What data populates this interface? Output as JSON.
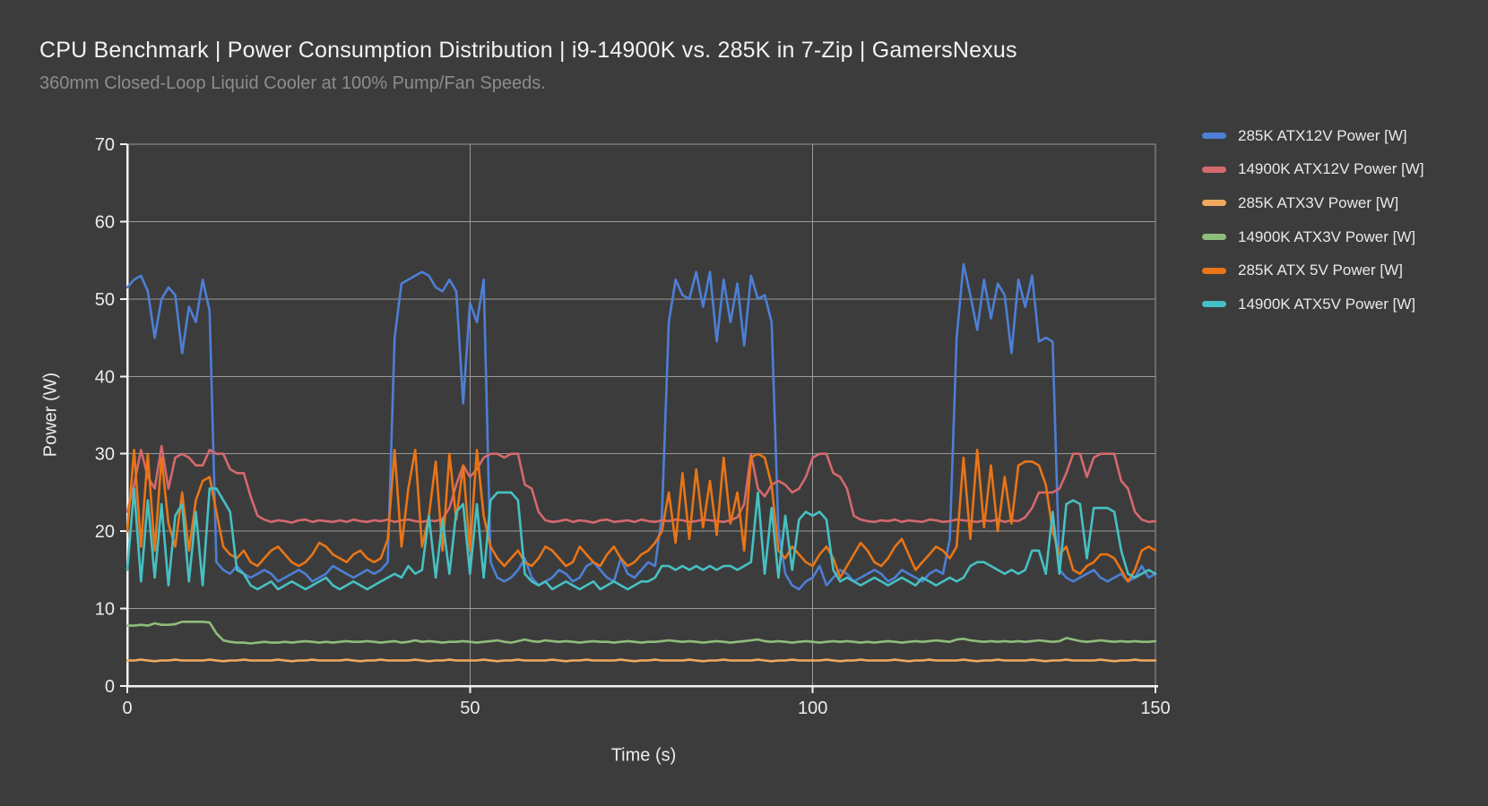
{
  "header": {
    "title": "CPU Benchmark | Power Consumption Distribution | i9-14900K vs. 285K in 7-Zip | GamersNexus",
    "subtitle": "360mm Closed-Loop Liquid Cooler at 100% Pump/Fan Speeds."
  },
  "colors": {
    "background": "#3c3c3c",
    "gridline": "#9a9a9a",
    "axis": "#f2f2f2",
    "title_text": "#f3f3f3",
    "subtitle_text": "#8d8d8d",
    "tick_text": "#ececec",
    "legend_text": "#e9e9e9"
  },
  "chart_data": {
    "type": "line",
    "title": "CPU Benchmark | Power Consumption Distribution | i9-14900K vs. 285K in 7-Zip | GamersNexus",
    "subtitle": "360mm Closed-Loop Liquid Cooler at 100% Pump/Fan Speeds.",
    "xlabel": "Time (s)",
    "ylabel": "Power (W)",
    "xlim": [
      0,
      150
    ],
    "ylim": [
      0,
      70
    ],
    "xticks": [
      0,
      50,
      100,
      150
    ],
    "yticks": [
      0,
      10,
      20,
      30,
      40,
      50,
      60,
      70
    ],
    "x_step": 1,
    "grid": "on",
    "legend_position": "right",
    "series": [
      {
        "name": "285K ATX12V Power [W]",
        "color": "#4d7fd6",
        "values": [
          51.5,
          52.5,
          53,
          51,
          45,
          50,
          51.5,
          50.5,
          43,
          49,
          47,
          52.5,
          48.5,
          16,
          15,
          14.5,
          15.5,
          14.5,
          14,
          14.5,
          15,
          14.5,
          13.5,
          14,
          14.5,
          15,
          14.5,
          13.5,
          14,
          14.5,
          15.5,
          15,
          14.5,
          14,
          14.5,
          15,
          14.5,
          15,
          16,
          45,
          52,
          52.5,
          53,
          53.5,
          53,
          51.5,
          51,
          52.5,
          51,
          36.5,
          49.5,
          47,
          52.5,
          16,
          14,
          13.5,
          14,
          15,
          16.5,
          14,
          13,
          13.5,
          14,
          15,
          14.5,
          13.5,
          14,
          15.5,
          16,
          15,
          14,
          13.5,
          16.5,
          14.5,
          14,
          15,
          16,
          15.5,
          22,
          47,
          52.5,
          50.5,
          50,
          53.5,
          49,
          53.5,
          44.5,
          52.5,
          47,
          52,
          44,
          53,
          50,
          50.5,
          47,
          20,
          14.5,
          13,
          12.5,
          13.5,
          14,
          15.5,
          13,
          14,
          15,
          14.5,
          13.5,
          14,
          14.5,
          15,
          14.5,
          13.5,
          14,
          15,
          14.5,
          14,
          13.5,
          14.5,
          15,
          14.5,
          19,
          45,
          54.5,
          50.5,
          46,
          52.5,
          47.5,
          52,
          50.5,
          43,
          52.5,
          49,
          53,
          44.5,
          45,
          44.5,
          15,
          14,
          13.5,
          14,
          14.5,
          15,
          14,
          13.5,
          14,
          14.5,
          13.5,
          14,
          15.5,
          14,
          14.5
        ]
      },
      {
        "name": "14900K ATX12V Power [W]",
        "color": "#d5696d",
        "values": [
          22.5,
          26,
          30.5,
          27,
          25.5,
          31,
          25.5,
          29.5,
          30,
          29.5,
          28.5,
          28.5,
          30.5,
          30,
          30,
          28,
          27.5,
          27.5,
          24.5,
          22,
          21.5,
          21.2,
          21.4,
          21.3,
          21.1,
          21.4,
          21.5,
          21.2,
          21.4,
          21.3,
          21.2,
          21.4,
          21.2,
          21.5,
          21.3,
          21.2,
          21.4,
          21.3,
          21.5,
          21.2,
          21.4,
          21.5,
          21.3,
          21.2,
          21.4,
          21.3,
          21.6,
          23,
          26,
          28.5,
          27,
          28,
          29.5,
          30,
          30,
          29.5,
          30,
          30,
          26,
          25.5,
          22.5,
          21.4,
          21.2,
          21.3,
          21.5,
          21.2,
          21.4,
          21.3,
          21.1,
          21.4,
          21.5,
          21.2,
          21.3,
          21.4,
          21.2,
          21.5,
          21.3,
          21.2,
          21.4,
          21.3,
          21.5,
          21.4,
          21.2,
          21.3,
          21.5,
          21.4,
          21.3,
          21.2,
          21.4,
          21.8,
          23.5,
          30,
          25.5,
          24.5,
          26,
          26.5,
          26,
          25,
          25.5,
          27,
          29.5,
          30,
          30,
          27.5,
          27,
          25.5,
          22,
          21.5,
          21.3,
          21.2,
          21.4,
          21.3,
          21.5,
          21.2,
          21.4,
          21.3,
          21.2,
          21.5,
          21.4,
          21.2,
          21.3,
          21.5,
          21.4,
          21.3,
          21.2,
          21.4,
          21.3,
          21.5,
          21.2,
          21.4,
          21.3,
          21.8,
          23,
          25,
          25,
          25,
          25.5,
          27.5,
          30,
          30,
          27,
          29.5,
          30,
          30,
          30,
          26.5,
          25.5,
          22.5,
          21.5,
          21.2,
          21.3
        ]
      },
      {
        "name": "285K ATX3V Power [W]",
        "color": "#f0a95e",
        "values": [
          3.3,
          3.3,
          3.4,
          3.3,
          3.2,
          3.3,
          3.3,
          3.4,
          3.3,
          3.3,
          3.3,
          3.3,
          3.4,
          3.3,
          3.2,
          3.3,
          3.3,
          3.4,
          3.3,
          3.3,
          3.3,
          3.3,
          3.4,
          3.3,
          3.2,
          3.3,
          3.3,
          3.4,
          3.3,
          3.3,
          3.3,
          3.3,
          3.4,
          3.3,
          3.2,
          3.3,
          3.3,
          3.4,
          3.3,
          3.3,
          3.3,
          3.3,
          3.4,
          3.3,
          3.2,
          3.3,
          3.3,
          3.4,
          3.3,
          3.3,
          3.3,
          3.3,
          3.4,
          3.3,
          3.2,
          3.3,
          3.3,
          3.4,
          3.3,
          3.3,
          3.3,
          3.3,
          3.4,
          3.3,
          3.2,
          3.3,
          3.3,
          3.4,
          3.3,
          3.3,
          3.3,
          3.3,
          3.4,
          3.3,
          3.2,
          3.3,
          3.3,
          3.4,
          3.3,
          3.3,
          3.3,
          3.3,
          3.4,
          3.3,
          3.2,
          3.3,
          3.3,
          3.4,
          3.3,
          3.3,
          3.3,
          3.3,
          3.4,
          3.3,
          3.2,
          3.3,
          3.3,
          3.4,
          3.3,
          3.3,
          3.3,
          3.3,
          3.4,
          3.3,
          3.2,
          3.3,
          3.3,
          3.4,
          3.3,
          3.3,
          3.3,
          3.3,
          3.4,
          3.3,
          3.2,
          3.3,
          3.3,
          3.4,
          3.3,
          3.3,
          3.3,
          3.3,
          3.4,
          3.3,
          3.2,
          3.3,
          3.3,
          3.4,
          3.3,
          3.3,
          3.3,
          3.3,
          3.4,
          3.3,
          3.2,
          3.3,
          3.3,
          3.4,
          3.3,
          3.3,
          3.3,
          3.3,
          3.4,
          3.3,
          3.2,
          3.3,
          3.3,
          3.4,
          3.3,
          3.3,
          3.3
        ]
      },
      {
        "name": "14900K ATX3V Power [W]",
        "color": "#8fbd7a",
        "values": [
          7.8,
          7.8,
          7.9,
          7.8,
          8.1,
          7.9,
          7.9,
          8,
          8.3,
          8.3,
          8.3,
          8.3,
          8.2,
          6.8,
          5.9,
          5.7,
          5.6,
          5.6,
          5.5,
          5.6,
          5.7,
          5.6,
          5.6,
          5.7,
          5.6,
          5.7,
          5.8,
          5.7,
          5.6,
          5.7,
          5.6,
          5.7,
          5.8,
          5.7,
          5.7,
          5.8,
          5.7,
          5.6,
          5.7,
          5.8,
          5.6,
          5.7,
          5.9,
          5.7,
          5.8,
          5.7,
          5.6,
          5.7,
          5.7,
          5.8,
          5.7,
          5.6,
          5.7,
          5.8,
          5.9,
          5.7,
          5.6,
          5.8,
          6,
          5.8,
          5.7,
          5.9,
          5.8,
          5.7,
          5.8,
          5.7,
          5.6,
          5.7,
          5.8,
          5.7,
          5.7,
          5.6,
          5.7,
          5.8,
          5.7,
          5.6,
          5.7,
          5.7,
          5.8,
          5.9,
          5.8,
          5.7,
          5.8,
          5.7,
          5.6,
          5.7,
          5.8,
          5.7,
          5.6,
          5.7,
          5.8,
          5.9,
          6,
          5.8,
          5.7,
          5.8,
          5.7,
          5.6,
          5.7,
          5.8,
          5.7,
          5.6,
          5.7,
          5.8,
          5.7,
          5.8,
          5.7,
          5.6,
          5.7,
          5.6,
          5.7,
          5.8,
          5.7,
          5.6,
          5.7,
          5.8,
          5.7,
          5.8,
          5.9,
          5.8,
          5.7,
          6,
          6.1,
          5.9,
          5.8,
          5.7,
          5.8,
          5.7,
          5.8,
          5.7,
          5.8,
          5.7,
          5.8,
          5.9,
          5.8,
          5.7,
          5.8,
          6.2,
          6,
          5.8,
          5.7,
          5.8,
          5.9,
          5.8,
          5.7,
          5.8,
          5.7,
          5.8,
          5.7,
          5.7,
          5.8
        ]
      },
      {
        "name": "285K ATX 5V Power [W]",
        "color": "#e97517",
        "values": [
          20,
          30.5,
          18,
          30,
          17.5,
          29.5,
          21,
          18,
          25,
          17.5,
          24,
          26.5,
          27,
          22.5,
          18,
          17,
          16.5,
          17.5,
          16,
          15.5,
          16.5,
          17.5,
          18,
          17,
          16,
          15.5,
          16,
          17,
          18.5,
          18,
          17,
          16.5,
          16,
          17,
          17.5,
          16.5,
          16,
          16.5,
          19,
          30.5,
          18,
          25.5,
          30.5,
          18,
          22,
          29,
          17.5,
          30,
          21.5,
          28.5,
          17.5,
          30.5,
          22,
          18,
          16.5,
          15.5,
          16.5,
          17.5,
          16,
          15.5,
          16.5,
          18,
          17.5,
          16.5,
          15.5,
          16,
          18,
          17,
          16,
          15.5,
          17,
          18,
          16.5,
          15.5,
          16,
          17,
          17.5,
          18.5,
          20,
          25,
          18.5,
          27.5,
          19,
          28,
          20.5,
          26.5,
          19.5,
          29.5,
          21,
          25,
          17.5,
          29.5,
          30,
          29.5,
          26,
          17.5,
          16.5,
          18,
          17,
          16,
          15.5,
          17,
          18,
          16.5,
          14,
          15.5,
          17,
          18.5,
          17.5,
          16,
          15.5,
          16.5,
          18,
          19,
          17,
          15,
          16,
          17,
          18,
          17.5,
          16.5,
          18,
          29.5,
          19,
          30.5,
          20.5,
          28.5,
          20,
          27,
          21,
          28.5,
          29,
          29,
          28.5,
          26,
          20,
          17,
          18,
          15,
          14.5,
          15.5,
          16,
          17,
          17,
          16.5,
          15,
          13.5,
          15,
          17.5,
          18,
          17.5
        ]
      },
      {
        "name": "14900K ATX5V Power [W]",
        "color": "#47c0c3",
        "values": [
          15,
          25.5,
          13.5,
          24,
          14,
          23.5,
          13,
          22,
          23.5,
          13.5,
          22.5,
          13,
          25.5,
          25.5,
          24,
          22.5,
          15,
          14.5,
          13,
          12.5,
          13,
          13.5,
          12.5,
          13,
          13.5,
          13,
          12.5,
          13,
          13.5,
          14,
          13,
          12.5,
          13,
          13.5,
          13,
          12.5,
          13,
          13.5,
          14,
          14.5,
          14,
          15.5,
          14.5,
          15,
          22,
          14,
          21.5,
          14.5,
          22.5,
          23.5,
          14.5,
          23.5,
          14,
          24,
          25,
          25,
          25,
          24,
          14.5,
          13.5,
          13,
          13.5,
          12.5,
          13,
          13.5,
          13,
          12.5,
          13,
          13.5,
          12.5,
          13,
          13.5,
          13,
          12.5,
          13,
          13.5,
          13.5,
          14,
          15.5,
          15.5,
          15,
          15.5,
          15,
          15.5,
          15,
          15.5,
          15,
          15.5,
          15.5,
          15,
          15.5,
          16,
          25,
          14.5,
          23,
          14,
          22,
          15,
          21.5,
          22.5,
          22,
          22.5,
          21.5,
          15,
          13.5,
          14,
          13.5,
          13,
          13.5,
          14,
          13.5,
          13,
          13.5,
          14,
          13.5,
          13,
          14,
          13.5,
          13,
          13.5,
          14,
          13.5,
          14,
          15.5,
          16,
          16,
          15.5,
          15,
          14.5,
          15,
          14.5,
          15,
          17.5,
          17.5,
          14.5,
          22.5,
          14.5,
          23.5,
          24,
          23.5,
          16.5,
          23,
          23,
          23,
          22.5,
          17.5,
          14.5,
          14,
          14.5,
          15,
          14.5
        ]
      }
    ]
  }
}
